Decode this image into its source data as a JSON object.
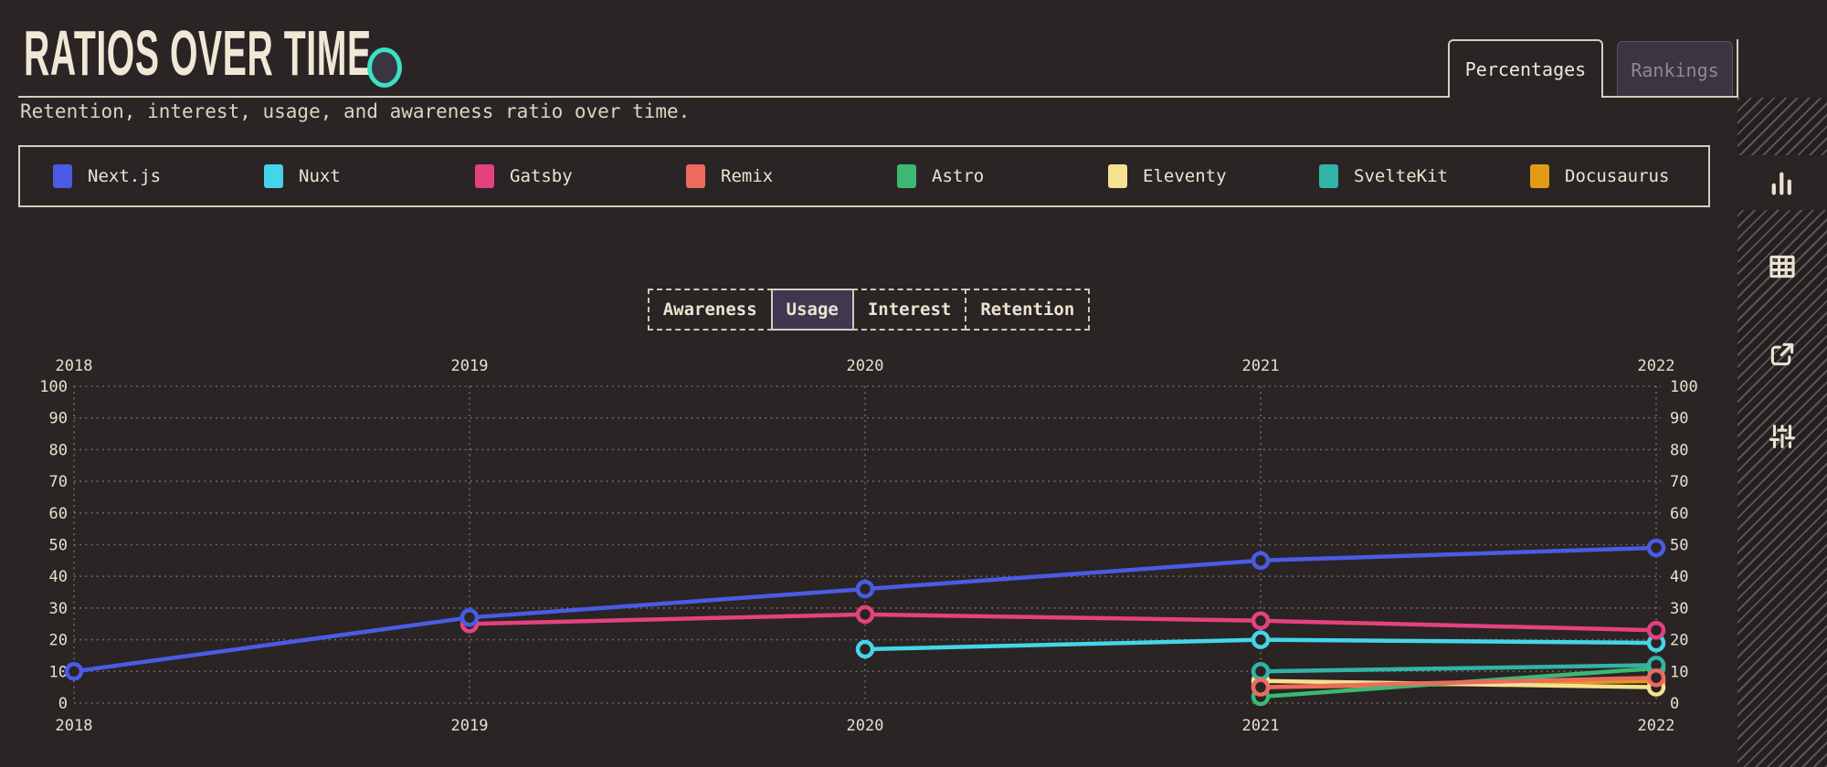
{
  "header": {
    "title": "RATIOS OVER TIME",
    "subtitle": "Retention, interest, usage, and awareness ratio over time."
  },
  "view_tabs": [
    {
      "label": "Percentages",
      "active": true
    },
    {
      "label": "Rankings",
      "active": false
    }
  ],
  "metric_toggle": [
    {
      "label": "Awareness",
      "active": false
    },
    {
      "label": "Usage",
      "active": true
    },
    {
      "label": "Interest",
      "active": false
    },
    {
      "label": "Retention",
      "active": false
    }
  ],
  "sidebar": {
    "icons": [
      {
        "name": "bar-chart-icon",
        "active": true
      },
      {
        "name": "table-icon",
        "active": false
      },
      {
        "name": "external-link-icon",
        "active": false
      },
      {
        "name": "sliders-icon",
        "active": false
      }
    ]
  },
  "colors": {
    "background": "#2a2425",
    "cream": "#ece4d2",
    "accent_teal": "#3ce0c4",
    "inactive_tab_bg": "#3a3443",
    "active_toggle_bg": "#3e3850",
    "gridline": "#736d66"
  },
  "chart_data": {
    "type": "line",
    "x": [
      2018,
      2019,
      2020,
      2021,
      2022
    ],
    "ylim": [
      0,
      100
    ],
    "yticks": [
      0,
      10,
      20,
      30,
      40,
      50,
      60,
      70,
      80,
      90,
      100
    ],
    "grid": "dotted",
    "legend_position": "top",
    "series": [
      {
        "name": "Next.js",
        "color": "#4a5be4",
        "values": [
          10,
          27,
          36,
          45,
          49
        ]
      },
      {
        "name": "Nuxt",
        "color": "#45d5e8",
        "values": [
          null,
          null,
          17,
          20,
          19
        ]
      },
      {
        "name": "Gatsby",
        "color": "#e4427f",
        "values": [
          null,
          25,
          28,
          26,
          23
        ]
      },
      {
        "name": "Remix",
        "color": "#ed6a5f",
        "values": [
          null,
          null,
          null,
          5,
          8
        ]
      },
      {
        "name": "Astro",
        "color": "#3cb873",
        "values": [
          null,
          null,
          null,
          2,
          11
        ]
      },
      {
        "name": "Eleventy",
        "color": "#f5e18f",
        "values": [
          null,
          null,
          null,
          7,
          5
        ]
      },
      {
        "name": "SvelteKit",
        "color": "#32b3a7",
        "values": [
          null,
          null,
          null,
          10,
          12
        ]
      },
      {
        "name": "Docusaurus",
        "color": "#e19b16",
        "values": [
          null,
          null,
          null,
          5,
          7
        ]
      }
    ]
  }
}
